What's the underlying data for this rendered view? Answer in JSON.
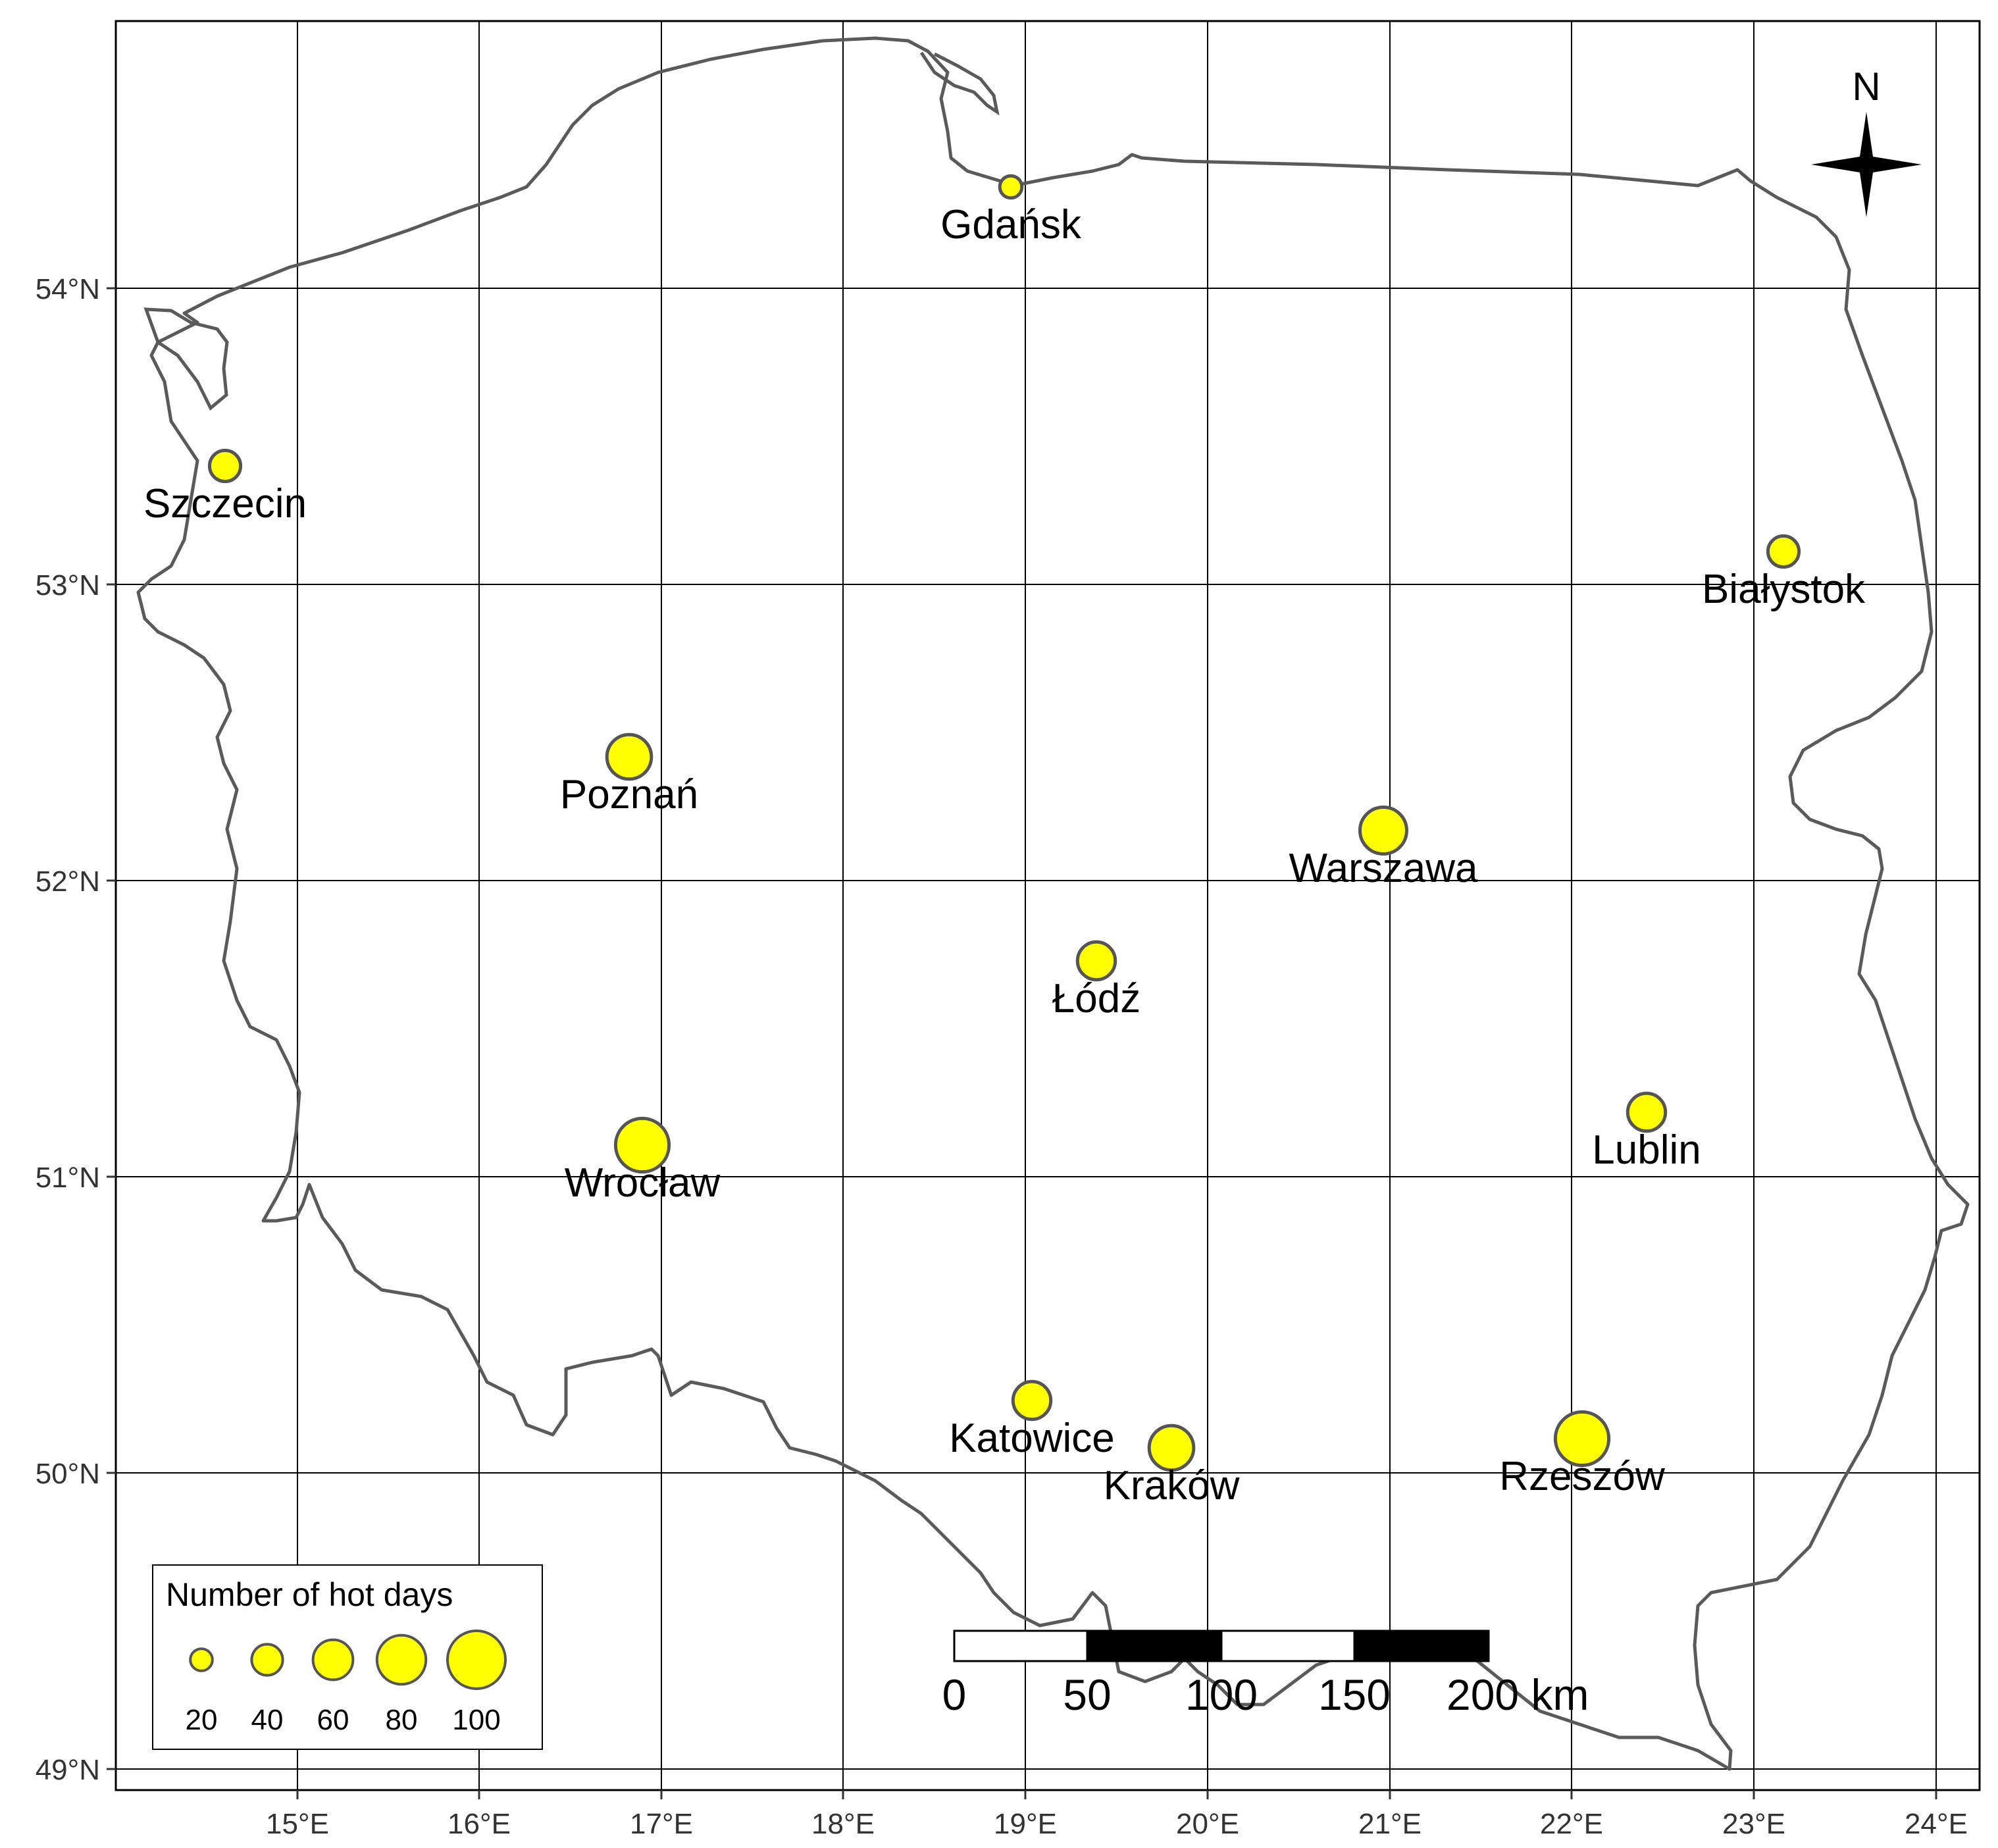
{
  "map": {
    "x_ticks": [
      "15°E",
      "16°E",
      "17°E",
      "18°E",
      "19°E",
      "20°E",
      "21°E",
      "22°E",
      "23°E",
      "24°E"
    ],
    "y_ticks": [
      "54°N",
      "53°N",
      "52°N",
      "51°N",
      "50°N",
      "49°N"
    ],
    "north_label": "N",
    "cities": [
      {
        "name": "Gdańsk",
        "hot_days": 20
      },
      {
        "name": "Szczecin",
        "hot_days": 40
      },
      {
        "name": "Białystok",
        "hot_days": 40
      },
      {
        "name": "Poznań",
        "hot_days": 70
      },
      {
        "name": "Warszawa",
        "hot_days": 75
      },
      {
        "name": "Łódź",
        "hot_days": 55
      },
      {
        "name": "Wrocław",
        "hot_days": 90
      },
      {
        "name": "Lublin",
        "hot_days": 55
      },
      {
        "name": "Katowice",
        "hot_days": 55
      },
      {
        "name": "Kraków",
        "hot_days": 70
      },
      {
        "name": "Rzeszów",
        "hot_days": 90
      }
    ],
    "legend": {
      "title": "Number of hot days",
      "items": [
        "20",
        "40",
        "60",
        "80",
        "100"
      ]
    },
    "scale_bar": {
      "labels": [
        "0",
        "50",
        "100",
        "150",
        "200 km"
      ]
    },
    "colors": {
      "point_fill": "#ffff00",
      "point_stroke": "#555555",
      "border": "#555555",
      "grid": "#000000"
    }
  }
}
